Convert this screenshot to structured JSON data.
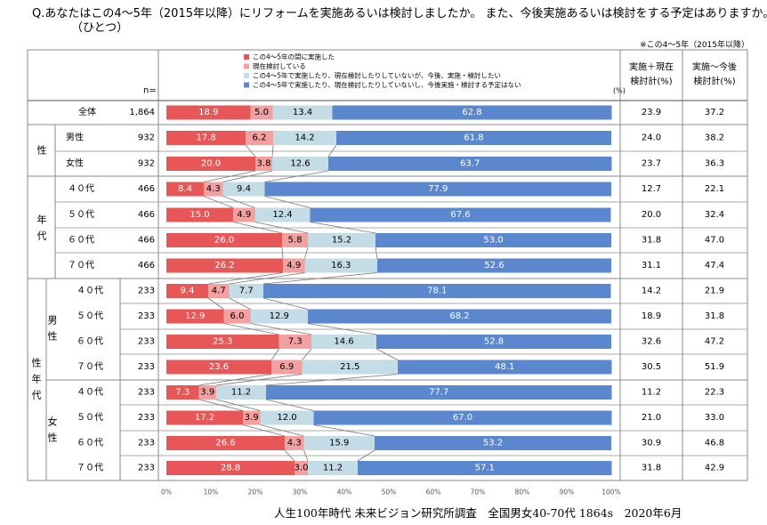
{
  "question": {
    "line1": "Q.あなたはこの4～5年（2015年以降）にリフォームを実施あるいは検討しましたか。 また、今後実施あるいは検討をする予定はありますか。",
    "line2": "（ひとつ）"
  },
  "note": "※この4～5年（2015年以降）",
  "n_label": "n=",
  "pct_label": "(%)",
  "col_headers": {
    "sum1": [
      "実施＋現在",
      "検討計(%)"
    ],
    "sum2": [
      "実施～今後",
      "検討計(%)"
    ]
  },
  "group_labels": {
    "sex": "性",
    "age": [
      "年",
      "代"
    ],
    "sexage": [
      "性",
      "年",
      "代"
    ],
    "male": [
      "男",
      "性"
    ],
    "female": [
      "女",
      "性"
    ]
  },
  "footer": "人生100年時代 未来ビジョン研究所調査　全国男女40-70代 1864s　2020年6月",
  "colors": {
    "s1": "#e85757",
    "s2": "#f2a0a0",
    "s3": "#c3dce6",
    "s4": "#5b87cf",
    "border": "#888888"
  },
  "chart_data": {
    "type": "bar",
    "stacked": true,
    "orientation": "horizontal",
    "xlim": [
      0,
      100
    ],
    "x_ticks": [
      "0%",
      "10%",
      "20%",
      "30%",
      "40%",
      "50%",
      "60%",
      "70%",
      "80%",
      "90%",
      "100%"
    ],
    "legend_position": "top",
    "series": [
      {
        "name": "この4～5年の間に実施した"
      },
      {
        "name": "現在検討している"
      },
      {
        "name": "この4～5年で実施したり、現在検討したりしていないが、今後、実施・検討したい"
      },
      {
        "name": "この4～5年で実施したり、現在検討したりしていないし、今後実施・検討する予定はない"
      }
    ],
    "rows": [
      {
        "label": "全体",
        "n": "1,864",
        "values": [
          18.9,
          5.0,
          13.4,
          62.8
        ],
        "sum1": "23.9",
        "sum2": "37.2"
      },
      {
        "label": "男性",
        "n": "932",
        "values": [
          17.8,
          6.2,
          14.2,
          61.8
        ],
        "sum1": "24.0",
        "sum2": "38.2"
      },
      {
        "label": "女性",
        "n": "932",
        "values": [
          20.0,
          3.8,
          12.6,
          63.7
        ],
        "sum1": "23.7",
        "sum2": "36.3"
      },
      {
        "label": "４０代",
        "n": "466",
        "values": [
          8.4,
          4.3,
          9.4,
          77.9
        ],
        "sum1": "12.7",
        "sum2": "22.1"
      },
      {
        "label": "５０代",
        "n": "466",
        "values": [
          15.0,
          4.9,
          12.4,
          67.6
        ],
        "sum1": "20.0",
        "sum2": "32.4"
      },
      {
        "label": "６０代",
        "n": "466",
        "values": [
          26.0,
          5.8,
          15.2,
          53.0
        ],
        "sum1": "31.8",
        "sum2": "47.0"
      },
      {
        "label": "７０代",
        "n": "466",
        "values": [
          26.2,
          4.9,
          16.3,
          52.6
        ],
        "sum1": "31.1",
        "sum2": "47.4"
      },
      {
        "label": "４０代",
        "n": "233",
        "values": [
          9.4,
          4.7,
          7.7,
          78.1
        ],
        "sum1": "14.2",
        "sum2": "21.9"
      },
      {
        "label": "５０代",
        "n": "233",
        "values": [
          12.9,
          6.0,
          12.9,
          68.2
        ],
        "sum1": "18.9",
        "sum2": "31.8"
      },
      {
        "label": "６０代",
        "n": "233",
        "values": [
          25.3,
          7.3,
          14.6,
          52.8
        ],
        "sum1": "32.6",
        "sum2": "47.2"
      },
      {
        "label": "７０代",
        "n": "233",
        "values": [
          23.6,
          6.9,
          21.5,
          48.1
        ],
        "sum1": "30.5",
        "sum2": "51.9"
      },
      {
        "label": "４０代",
        "n": "233",
        "values": [
          7.3,
          3.9,
          11.2,
          77.7
        ],
        "sum1": "11.2",
        "sum2": "22.3"
      },
      {
        "label": "５０代",
        "n": "233",
        "values": [
          17.2,
          3.9,
          12.0,
          67.0
        ],
        "sum1": "21.0",
        "sum2": "33.0"
      },
      {
        "label": "６０代",
        "n": "233",
        "values": [
          26.6,
          4.3,
          15.9,
          53.2
        ],
        "sum1": "30.9",
        "sum2": "46.8"
      },
      {
        "label": "７０代",
        "n": "233",
        "values": [
          28.8,
          3.0,
          11.2,
          57.1
        ],
        "sum1": "31.8",
        "sum2": "42.9"
      }
    ]
  }
}
